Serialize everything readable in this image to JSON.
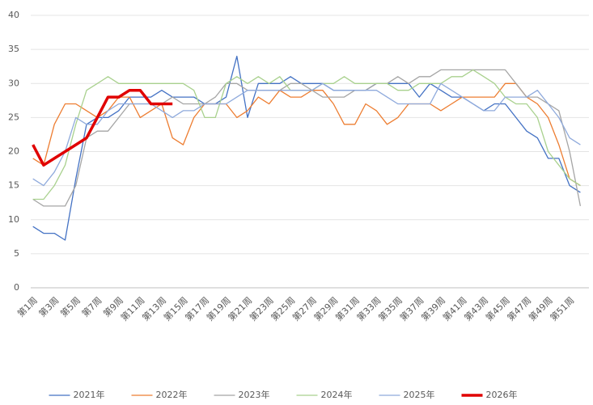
{
  "chart_data": {
    "type": "line",
    "categories": [
      "第1周",
      null,
      "第3周",
      null,
      "第5周",
      null,
      "第7周",
      null,
      "第9周",
      null,
      "第11周",
      null,
      "第13周",
      null,
      "第15周",
      null,
      "第17周",
      null,
      "第19周",
      null,
      "第21周",
      null,
      "第23周",
      null,
      "第25周",
      null,
      "第27周",
      null,
      "第29周",
      null,
      "第31周",
      null,
      "第33周",
      null,
      "第35周",
      null,
      "第37周",
      null,
      "第39周",
      null,
      "第41周",
      null,
      "第43周",
      null,
      "第45周",
      null,
      "第47周",
      null,
      "第49周",
      null,
      "第51周",
      null
    ],
    "ylim": [
      0,
      40
    ],
    "yticks": [
      0,
      5,
      10,
      15,
      20,
      25,
      30,
      35,
      40
    ],
    "grid": true,
    "legend": "bottom",
    "series": [
      {
        "name": "2021年",
        "color": "#4472c4",
        "width": 1.3,
        "values": [
          9,
          8,
          8,
          7,
          16,
          24,
          25,
          25,
          26,
          28,
          28,
          28,
          29,
          28,
          28,
          28,
          27,
          27,
          28,
          34,
          25,
          30,
          30,
          30,
          31,
          30,
          30,
          30,
          29,
          29,
          29,
          29,
          30,
          30,
          30,
          30,
          28,
          30,
          29,
          28,
          28,
          27,
          26,
          27,
          27,
          25,
          23,
          22,
          19,
          19,
          15,
          14
        ]
      },
      {
        "name": "2022年",
        "color": "#ed7d31",
        "width": 1.3,
        "values": [
          19,
          18,
          24,
          27,
          27,
          26,
          25,
          26,
          28,
          28,
          25,
          26,
          27,
          22,
          21,
          25,
          27,
          27,
          27,
          25,
          26,
          28,
          27,
          29,
          28,
          28,
          29,
          29,
          27,
          24,
          24,
          27,
          26,
          24,
          25,
          27,
          27,
          27,
          26,
          27,
          28,
          28,
          28,
          28,
          30,
          30,
          28,
          27,
          25,
          21,
          16,
          15
        ]
      },
      {
        "name": "2023年",
        "color": "#a5a5a5",
        "width": 1.3,
        "values": [
          13,
          12,
          12,
          12,
          15,
          22,
          23,
          23,
          25,
          27,
          27,
          27,
          27,
          28,
          27,
          27,
          27,
          28,
          30,
          30,
          29,
          29,
          29,
          29,
          30,
          30,
          29,
          28,
          28,
          28,
          29,
          29,
          30,
          30,
          31,
          30,
          31,
          31,
          32,
          32,
          32,
          32,
          32,
          32,
          32,
          30,
          28,
          28,
          27,
          26,
          20,
          12
        ]
      },
      {
        "name": "2024年",
        "color": "#a9d18e",
        "width": 1.3,
        "values": [
          13,
          13,
          15,
          18,
          24,
          29,
          30,
          31,
          30,
          30,
          30,
          30,
          30,
          30,
          30,
          29,
          25,
          25,
          30,
          31,
          30,
          31,
          30,
          31,
          29,
          29,
          29,
          30,
          30,
          31,
          30,
          30,
          30,
          30,
          29,
          29,
          30,
          30,
          30,
          31,
          31,
          32,
          31,
          30,
          28,
          27,
          27,
          25,
          20,
          18,
          16,
          15
        ]
      },
      {
        "name": "2025年",
        "color": "#8faadc",
        "width": 1.3,
        "values": [
          16,
          15,
          17,
          20,
          25,
          24,
          24,
          26,
          27,
          27,
          27,
          27,
          26,
          25,
          26,
          26,
          27,
          27,
          27,
          28,
          29,
          29,
          29,
          29,
          29,
          29,
          29,
          30,
          29,
          29,
          29,
          29,
          29,
          28,
          27,
          27,
          27,
          27,
          30,
          29,
          28,
          27,
          26,
          26,
          28,
          28,
          28,
          29,
          27,
          25,
          22,
          21
        ]
      },
      {
        "name": "2026年",
        "color": "#e00000",
        "width": 3.5,
        "values": [
          21,
          18,
          19,
          20,
          21,
          22,
          25,
          28,
          28,
          29,
          29,
          27,
          27,
          27,
          null,
          null,
          null,
          null,
          null,
          null,
          null,
          null,
          null,
          null,
          null,
          null,
          null,
          null,
          null,
          null,
          null,
          null,
          null,
          null,
          null,
          null,
          null,
          null,
          null,
          null,
          null,
          null,
          null,
          null,
          null,
          null,
          null,
          null,
          null,
          null,
          null,
          null
        ]
      }
    ]
  }
}
